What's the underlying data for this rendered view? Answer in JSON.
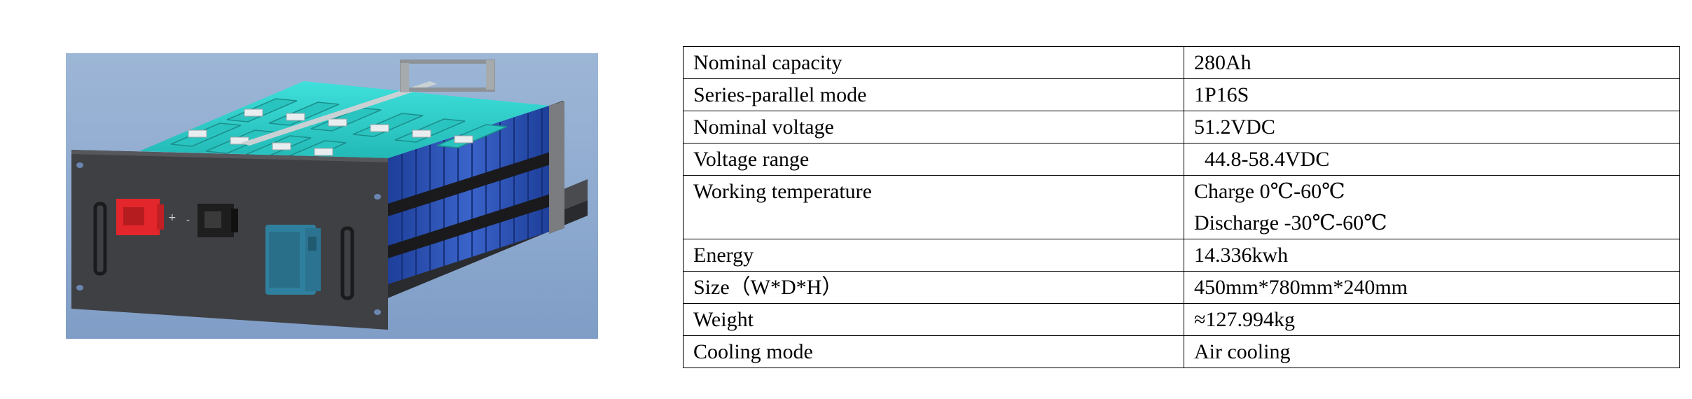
{
  "product_image": {
    "icon": "battery-pack-render",
    "terminal_plus": "+",
    "terminal_minus": "-"
  },
  "specs": {
    "rows": [
      {
        "label": "Nominal capacity",
        "values": [
          "280Ah"
        ]
      },
      {
        "label": "Series-parallel mode",
        "values": [
          "1P16S"
        ]
      },
      {
        "label": "Nominal voltage",
        "values": [
          "51.2VDC"
        ]
      },
      {
        "label": "Voltage range",
        "values": [
          "  44.8-58.4VDC"
        ]
      },
      {
        "label": "Working temperature",
        "values": [
          "Charge 0℃-60℃",
          "Discharge -30℃-60℃"
        ]
      },
      {
        "label": "Energy",
        "values": [
          "14.336kwh"
        ]
      },
      {
        "label": "Size（W*D*H）",
        "values": [
          "450mm*780mm*240mm"
        ]
      },
      {
        "label": "Weight",
        "values": [
          "≈127.994kg"
        ]
      },
      {
        "label": "Cooling mode",
        "values": [
          "Air cooling"
        ]
      }
    ]
  },
  "colors": {
    "background": "#9db6d6",
    "panel": "#3f4043",
    "cells": "#2f55b8",
    "busbar_cover": "#35d3cf",
    "positive_terminal": "#e3262b",
    "negative_terminal": "#1e1e1e",
    "breaker": "#2f7f9e"
  }
}
